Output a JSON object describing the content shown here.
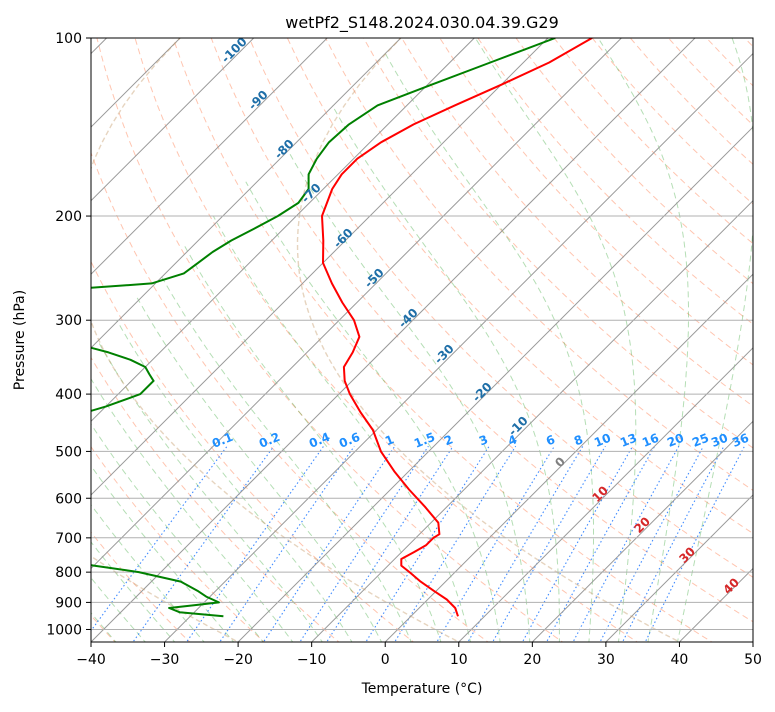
{
  "chart_data": {
    "type": "line",
    "title": "wetPf2_S148.2024.030.04.39.G29",
    "xlabel": "Temperature (°C)",
    "ylabel": "Pressure (hPa)",
    "xlim": [
      -40,
      50
    ],
    "ylim": [
      1050,
      100
    ],
    "y_scale": "log",
    "skew": "skew-T log-p",
    "grid": true,
    "x_ticks": [
      -40,
      -30,
      -20,
      -10,
      0,
      10,
      20,
      30,
      40,
      50
    ],
    "x_tick_labels": [
      "−40",
      "−30",
      "−20",
      "−10",
      "0",
      "10",
      "20",
      "30",
      "40",
      "50"
    ],
    "y_ticks": [
      100,
      200,
      300,
      400,
      500,
      600,
      700,
      800,
      900,
      1000
    ],
    "y_tick_labels": [
      "100",
      "200",
      "300",
      "400",
      "500",
      "600",
      "700",
      "800",
      "900",
      "1000"
    ],
    "series": [
      {
        "color": "#ff0000",
        "pressure": [
          100,
          110,
          120,
          130,
          140,
          150,
          160,
          170,
          180,
          200,
          220,
          240,
          260,
          280,
          300,
          320,
          340,
          360,
          380,
          400,
          430,
          460,
          500,
          540,
          580,
          620,
          660,
          690,
          700,
          720,
          740,
          760,
          780,
          800,
          830,
          860,
          890,
          920,
          950
        ],
        "temperature": [
          -54.0,
          -56.5,
          -60.0,
          -63.5,
          -66.5,
          -68.5,
          -69.5,
          -69.5,
          -68.8,
          -66.5,
          -63.0,
          -60.0,
          -56.0,
          -52.0,
          -48.0,
          -45.0,
          -43.8,
          -43.0,
          -41.0,
          -38.5,
          -34.5,
          -30.5,
          -26.5,
          -22.0,
          -17.5,
          -13.0,
          -9.0,
          -7.3,
          -7.6,
          -7.6,
          -8.3,
          -9.1,
          -8.2,
          -6.2,
          -3.4,
          -0.4,
          2.6,
          4.9,
          6.4
        ]
      },
      {
        "color": "#008000",
        "pressure": [
          100,
          110,
          120,
          130,
          140,
          150,
          160,
          170,
          180,
          190,
          200,
          210,
          220,
          230,
          240,
          250,
          260,
          265,
          270,
          280,
          300,
          315,
          320,
          330,
          340,
          350,
          360,
          370,
          380,
          400,
          420,
          440,
          450,
          460,
          480,
          500,
          520,
          540,
          560,
          580,
          600,
          620,
          640,
          660,
          680,
          700,
          720,
          740,
          760,
          780,
          800,
          830,
          860,
          880,
          900,
          910,
          920,
          935,
          950
        ],
        "temperature": [
          -59.0,
          -64.5,
          -69.5,
          -74.0,
          -75.3,
          -75.6,
          -75.0,
          -74.0,
          -72.0,
          -71.5,
          -72.5,
          -74.0,
          -75.5,
          -76.5,
          -77.0,
          -77.5,
          -80.5,
          -89.0,
          -95.0,
          -97.0,
          -98.0,
          -99.0,
          -91.0,
          -82.0,
          -77.0,
          -73.0,
          -70.0,
          -68.5,
          -67.0,
          -67.0,
          -70.0,
          -74.0,
          -78.0,
          -77.5,
          -74.0,
          -74.0,
          -73.0,
          -71.5,
          -71.0,
          -69.5,
          -69.5,
          -71.5,
          -70.5,
          -68.5,
          -64.5,
          -67.0,
          -62.0,
          -60.0,
          -56.0,
          -50.0,
          -43.0,
          -36.0,
          -32.5,
          -30.5,
          -28.0,
          -31.0,
          -34.0,
          -32.0,
          -25.5
        ]
      }
    ],
    "annotations": {
      "isotherm_labels": [
        "-100",
        "-90",
        "-80",
        "-70",
        "-60",
        "-50",
        "-40",
        "-30",
        "-20",
        "-10"
      ],
      "mixing_ratio_labels": [
        "0.1",
        "0.2",
        "0.4",
        "0.6",
        "1",
        "1.5",
        "2",
        "3",
        "4",
        "6",
        "8",
        "10",
        "13",
        "16",
        "20",
        "25",
        "30",
        "36"
      ],
      "other_labels": [
        "0",
        "10",
        "20",
        "30",
        "40"
      ]
    }
  }
}
